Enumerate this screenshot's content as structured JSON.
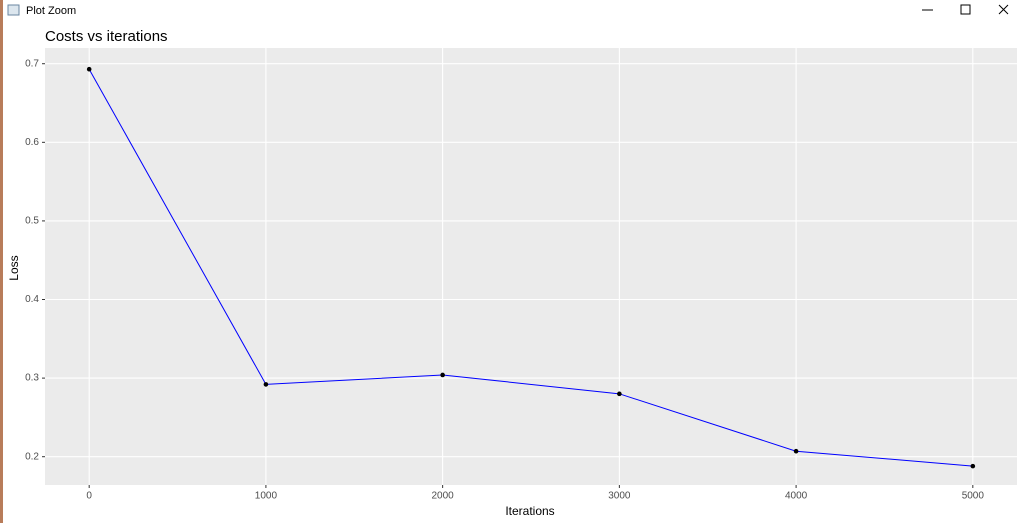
{
  "window": {
    "title": "Plot Zoom"
  },
  "chart_data": {
    "type": "line",
    "title": "Costs vs iterations",
    "x_label": "Iterations",
    "y_label": "Loss",
    "x": [
      0,
      1000,
      2000,
      3000,
      4000,
      5000
    ],
    "series": [
      {
        "color": "#0000ff",
        "point_color": "#000000",
        "values": [
          0.693,
          0.292,
          0.304,
          0.28,
          0.207,
          0.188
        ]
      }
    ],
    "xlim": [
      -250,
      5250
    ],
    "xticks": [
      0,
      1000,
      2000,
      3000,
      4000,
      5000
    ],
    "ylim": [
      0.164,
      0.72
    ],
    "yticks": [
      0.2,
      0.3,
      0.4,
      0.5,
      0.6,
      0.7
    ],
    "grid": true
  }
}
